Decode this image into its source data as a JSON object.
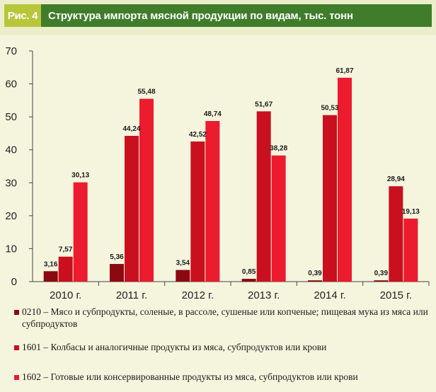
{
  "figure": {
    "label": "Рис. 4",
    "title": "Структура импорта мясной продукции по видам, тыс. тонн"
  },
  "chart_data": {
    "type": "bar",
    "title": "Структура импорта мясной продукции по видам, тыс. тонн",
    "categories": [
      "2010 г.",
      "2011 г.",
      "2012 г.",
      "2013 г.",
      "2014 г.",
      "2015 г."
    ],
    "ylim": [
      0,
      70
    ],
    "yticks": [
      0,
      10,
      20,
      30,
      40,
      50,
      60,
      70
    ],
    "grid": false,
    "legend_position": "bottom",
    "series": [
      {
        "name": "0210 – Мясо и субпродукты, соленые, в рассоле, сушеные или копченые; пищевая мука из мяса или субпродуктов",
        "color": "#8b0a12",
        "values": [
          3.16,
          5.36,
          3.54,
          0.85,
          0.39,
          0.39
        ],
        "labels": [
          "3,16",
          "5,36",
          "3,54",
          "0,85",
          "0,39",
          "0,39"
        ]
      },
      {
        "name": "1601 – Колбасы и аналогичные продукты из мяса, субпродуктов или крови",
        "color": "#c8101f",
        "values": [
          7.57,
          44.24,
          42.52,
          51.67,
          50.53,
          28.94
        ],
        "labels": [
          "7,57",
          "44,24",
          "42,52",
          "51,67",
          "50,53",
          "28,94"
        ]
      },
      {
        "name": "1602 – Готовые или консервированные продукты из мяса,  субпродуктов или крови",
        "color": "#ec1b2e",
        "values": [
          30.13,
          55.48,
          48.74,
          38.28,
          61.87,
          19.13
        ],
        "labels": [
          "30,13",
          "55,48",
          "48,74",
          "38,28",
          "61,87",
          "19,13"
        ]
      }
    ]
  }
}
